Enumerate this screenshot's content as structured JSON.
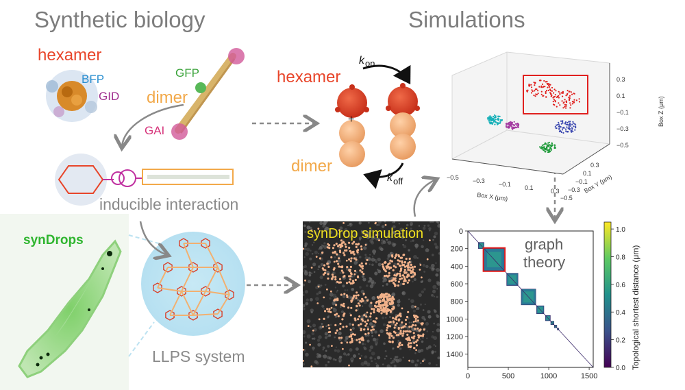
{
  "left_title": "Synthetic biology",
  "right_title": "Simulations",
  "labels": {
    "hexamer_top": "hexamer",
    "bfp": "BFP",
    "gid": "GID",
    "gfp": "GFP",
    "dimer_top": "dimer",
    "gai": "GAI",
    "hexamer_mid": "hexamer",
    "dimer_mid": "dimer",
    "plus": "+",
    "k_on": "k",
    "k_on_sub": "on",
    "k_off": "k",
    "k_off_sub": "off",
    "inducible": "inducible interaction",
    "syndrops": "synDrops",
    "llps": "LLPS system",
    "syndrop_sim": "synDrop simulation",
    "graph_theory_1": "graph",
    "graph_theory_2": "theory"
  },
  "colors": {
    "hexamer": "#e8452a",
    "dimer": "#f2a94a",
    "bfp": "#2a8fd0",
    "gid": "#a0308f",
    "gfp": "#3aa33a",
    "gai": "#d6337a",
    "syndrops": "#2fb52f",
    "syndrop_sim": "#f0e020",
    "red_box": "#e0201e"
  },
  "plot3d": {
    "x_axis_label": "Box X (μm)",
    "y_axis_label": "Box Y (μm)",
    "z_axis_label": "Box Z (μm)",
    "x_ticks": [
      "−0.5",
      "−0.3",
      "−0.1",
      "0.1",
      "0.3"
    ],
    "y_ticks": [
      "−0.5",
      "−0.3",
      "−0.1",
      "0.1",
      "0.3"
    ],
    "z_ticks": [
      "−0.5",
      "−0.3",
      "−0.1",
      "0.1",
      "0.3"
    ]
  },
  "chart_data": {
    "type": "heatmap",
    "xlabel": "",
    "ylabel": "",
    "x_ticks": [
      "0",
      "500",
      "1000",
      "1500"
    ],
    "y_ticks": [
      "0",
      "200",
      "400",
      "600",
      "800",
      "1000",
      "1200",
      "1400"
    ],
    "colorbar_label": "Topological shortest distance (μm)",
    "colorbar_ticks": [
      "0.0",
      "0.2",
      "0.4",
      "0.6",
      "0.8",
      "1.0"
    ],
    "colorbar_range": [
      0.0,
      1.05
    ],
    "matrix_size": 1550,
    "blocks": [
      {
        "start": 130,
        "end": 200
      },
      {
        "start": 200,
        "end": 450
      },
      {
        "start": 480,
        "end": 620
      },
      {
        "start": 660,
        "end": 840
      },
      {
        "start": 850,
        "end": 940
      },
      {
        "start": 960,
        "end": 1020
      },
      {
        "start": 1025,
        "end": 1065
      },
      {
        "start": 1070,
        "end": 1100
      },
      {
        "start": 1105,
        "end": 1125
      }
    ],
    "highlight_block": {
      "start": 200,
      "end": 450
    }
  }
}
